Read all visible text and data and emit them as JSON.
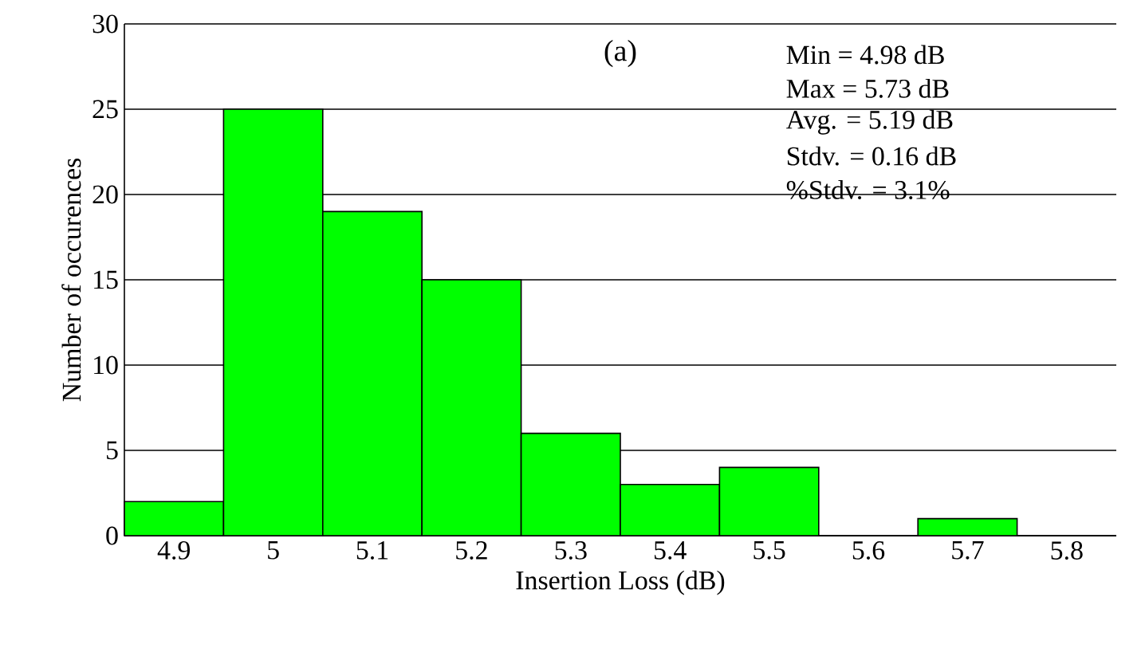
{
  "chart_data": {
    "type": "bar",
    "categories": [
      "4.9",
      "5",
      "5.1",
      "5.2",
      "5.3",
      "5.4",
      "5.5",
      "5.6",
      "5.7",
      "5.8"
    ],
    "values": [
      2,
      25,
      19,
      15,
      6,
      3,
      4,
      0,
      1,
      0
    ],
    "color": "#00ff00",
    "xlabel": "Insertion Loss (dB)",
    "ylabel": "Number of occurences",
    "ylim": [
      0,
      30
    ],
    "yticks": [
      0,
      5,
      10,
      15,
      20,
      25,
      30
    ],
    "grid": "y",
    "annotations": [
      "(a)",
      "Min = 4.98 dB",
      "Max = 5.73 dB",
      "Avg. = 5.19 dB",
      "Stdv. = 0.16 dB",
      "%Stdv. = 3.1%"
    ]
  }
}
